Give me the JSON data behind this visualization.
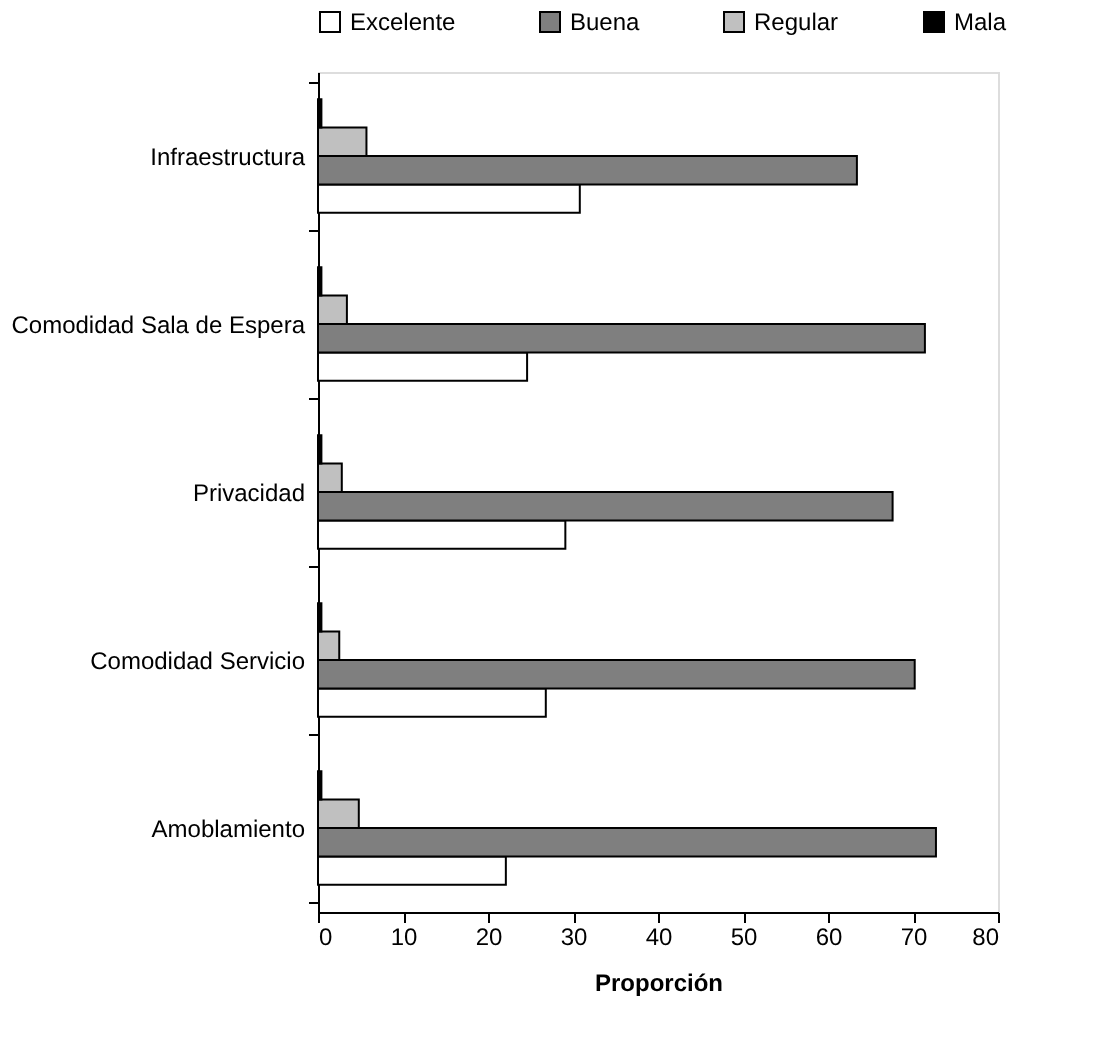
{
  "chart_data": {
    "type": "bar",
    "orientation": "horizontal",
    "xlabel": "Proporción",
    "categories": [
      "Infraestructura",
      "Comodidad Sala de Espera",
      "Privacidad",
      "Comodidad Servicio",
      "Amoblamiento"
    ],
    "series": [
      {
        "name": "Excelente",
        "color": "#ffffff",
        "values": [
          30.8,
          24.6,
          29.1,
          26.8,
          22.1
        ]
      },
      {
        "name": "Buena",
        "color": "#7f7f7f",
        "values": [
          63.4,
          71.4,
          67.6,
          70.2,
          72.7
        ]
      },
      {
        "name": "Regular",
        "color": "#c0c0c0",
        "values": [
          5.7,
          3.4,
          2.8,
          2.5,
          4.8
        ]
      },
      {
        "name": "Mala",
        "color": "#000000",
        "values": [
          0.4,
          0.4,
          0.4,
          0.4,
          0.4
        ]
      }
    ],
    "xlim": [
      0,
      80
    ],
    "xticks": [
      0,
      10,
      20,
      30,
      40,
      50,
      60,
      70,
      80
    ],
    "grid": false,
    "legend": "top"
  }
}
